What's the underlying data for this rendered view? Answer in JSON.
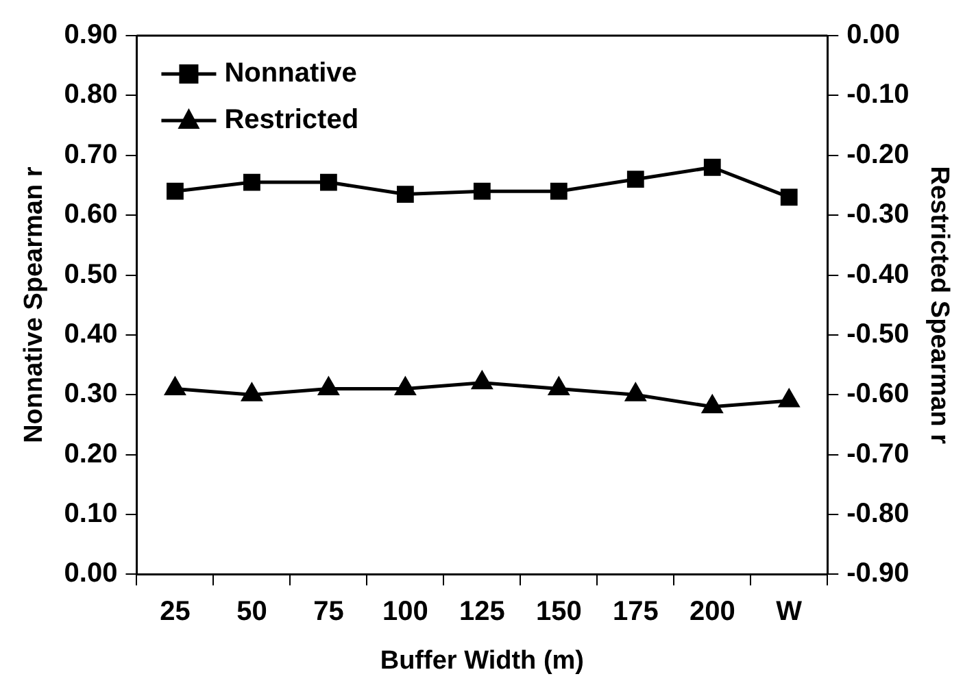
{
  "chart_data": {
    "type": "line",
    "xlabel": "Buffer Width (m)",
    "ylabel": "Nonnative Spearman r",
    "y2label": "Restricted Spearman r",
    "categories": [
      "25",
      "50",
      "75",
      "100",
      "125",
      "150",
      "175",
      "200",
      "W"
    ],
    "series": [
      {
        "name": "Nonnative",
        "color": "#000000",
        "marker": "square",
        "values": [
          0.64,
          0.655,
          0.655,
          0.635,
          0.64,
          0.64,
          0.66,
          0.68,
          0.63
        ]
      },
      {
        "name": "Restricted",
        "color": "#000000",
        "marker": "triangle",
        "axis": "y2",
        "values": [
          -0.59,
          -0.6,
          -0.59,
          -0.59,
          -0.58,
          -0.59,
          -0.6,
          -0.62,
          -0.61
        ]
      }
    ],
    "ylim": [
      0,
      0.9
    ],
    "yticks": [
      {
        "value": 0,
        "label": "0.00"
      },
      {
        "value": 0.1,
        "label": "0.10"
      },
      {
        "value": 0.2,
        "label": "0.20"
      },
      {
        "value": 0.3,
        "label": "0.30"
      },
      {
        "value": 0.4,
        "label": "0.40"
      },
      {
        "value": 0.5,
        "label": "0.50"
      },
      {
        "value": 0.6,
        "label": "0.60"
      },
      {
        "value": 0.7,
        "label": "0.70"
      },
      {
        "value": 0.8,
        "label": "0.80"
      },
      {
        "value": 0.9,
        "label": "0.90"
      }
    ],
    "y2lim": [
      -0.9,
      0
    ],
    "y2ticks": [
      {
        "value": -0.9,
        "label": "-0.90"
      },
      {
        "value": -0.8,
        "label": "-0.80"
      },
      {
        "value": -0.7,
        "label": "-0.70"
      },
      {
        "value": -0.6,
        "label": "-0.60"
      },
      {
        "value": -0.5,
        "label": "-0.50"
      },
      {
        "value": -0.4,
        "label": "-0.40"
      },
      {
        "value": -0.3,
        "label": "-0.30"
      },
      {
        "value": -0.2,
        "label": "-0.20"
      },
      {
        "value": -0.1,
        "label": "-0.10"
      },
      {
        "value": 0,
        "label": "0.00"
      }
    ],
    "grid": false,
    "legend": "top left",
    "line_style": "solid"
  }
}
